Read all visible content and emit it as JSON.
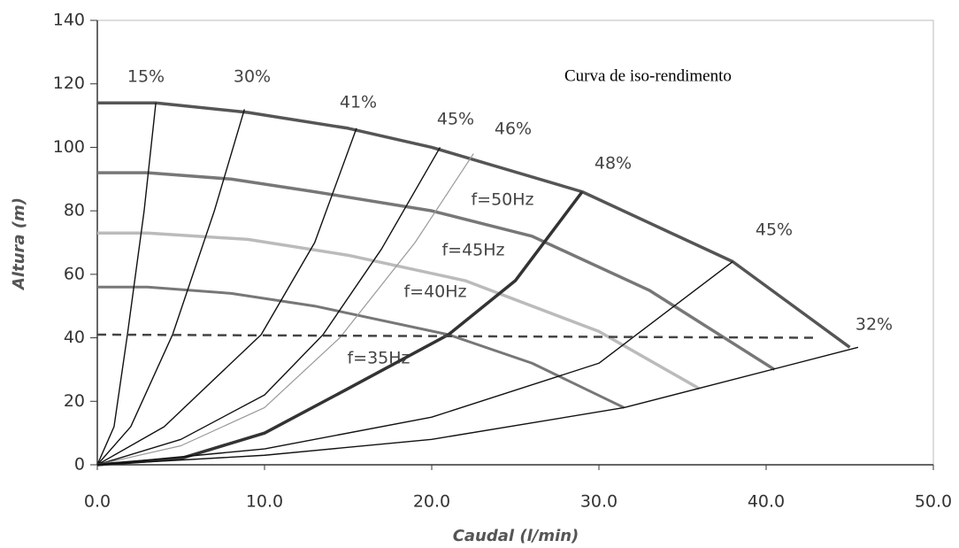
{
  "chart_data": {
    "type": "line",
    "annotation": "Curva de iso-rendimento",
    "x_label": "Caudal (l/min)",
    "y_label": "Altura (m)",
    "xlim": [
      0,
      50
    ],
    "xticks": [
      {
        "value": 0,
        "label": "0.0"
      },
      {
        "value": 10,
        "label": "10.0"
      },
      {
        "value": 20,
        "label": "20.0"
      },
      {
        "value": 30,
        "label": "30.0"
      },
      {
        "value": 40,
        "label": "40.0"
      },
      {
        "value": 50,
        "label": "50.0"
      }
    ],
    "ylim": [
      0,
      140
    ],
    "yticks": [
      0,
      20,
      40,
      60,
      80,
      100,
      120,
      140
    ],
    "series": [
      {
        "name": "f=50Hz",
        "color": "#555555",
        "x": [
          0,
          3.5,
          9,
          15,
          20,
          29,
          38,
          45
        ],
        "values": [
          114,
          114,
          111,
          106,
          100,
          86,
          64,
          37
        ]
      },
      {
        "name": "f=45Hz",
        "color": "#777777",
        "x": [
          0,
          3,
          8,
          13,
          20,
          26,
          33,
          40.5
        ],
        "values": [
          92,
          92,
          90,
          86,
          80,
          72,
          55,
          30
        ]
      },
      {
        "name": "f=40Hz",
        "color": "#bbbbbb",
        "x": [
          0,
          3,
          9,
          15,
          22,
          30,
          36
        ],
        "values": [
          73,
          73,
          71,
          66,
          58,
          42,
          24
        ]
      },
      {
        "name": "f=35Hz",
        "color": "#777777",
        "x": [
          0,
          3,
          8,
          13,
          21,
          26,
          31.5
        ],
        "values": [
          56,
          56,
          54,
          50,
          41,
          32,
          18
        ]
      },
      {
        "name": "15%",
        "color": "#111111",
        "x": [
          0,
          1,
          1.8,
          2.8,
          3.5
        ],
        "values": [
          0,
          12,
          41,
          80,
          114
        ]
      },
      {
        "name": "30%",
        "color": "#111111",
        "x": [
          0,
          2,
          4.5,
          7,
          8.8
        ],
        "values": [
          0,
          12,
          41,
          80,
          112
        ]
      },
      {
        "name": "41%",
        "color": "#111111",
        "x": [
          0,
          4,
          9.8,
          13,
          15.5
        ],
        "values": [
          0,
          12,
          41,
          70,
          106
        ]
      },
      {
        "name": "45%",
        "color": "#111111",
        "x": [
          0,
          5,
          10,
          13.5,
          17,
          20.5
        ],
        "values": [
          0,
          8,
          22,
          41,
          68,
          100
        ]
      },
      {
        "name": "46%",
        "color": "#999999",
        "x": [
          0,
          5,
          10,
          14.5,
          19,
          22.5
        ],
        "values": [
          0,
          6,
          18,
          40,
          70,
          98
        ]
      },
      {
        "name": "48%",
        "color": "#333333",
        "x": [
          0,
          5,
          10,
          15,
          21,
          25,
          29
        ],
        "values": [
          0,
          2,
          10,
          24,
          41,
          58,
          86
        ]
      },
      {
        "name": "45%",
        "color": "#111111",
        "x": [
          0,
          10,
          20,
          30,
          38
        ],
        "values": [
          0,
          5,
          15,
          32,
          64
        ]
      },
      {
        "name": "32%",
        "color": "#111111",
        "x": [
          0,
          10,
          20,
          31.5,
          45.5
        ],
        "values": [
          0,
          3,
          8,
          18,
          37
        ]
      }
    ],
    "hline": {
      "color": "#444444",
      "x": [
        0,
        43
      ],
      "values": [
        41,
        40
      ]
    }
  }
}
